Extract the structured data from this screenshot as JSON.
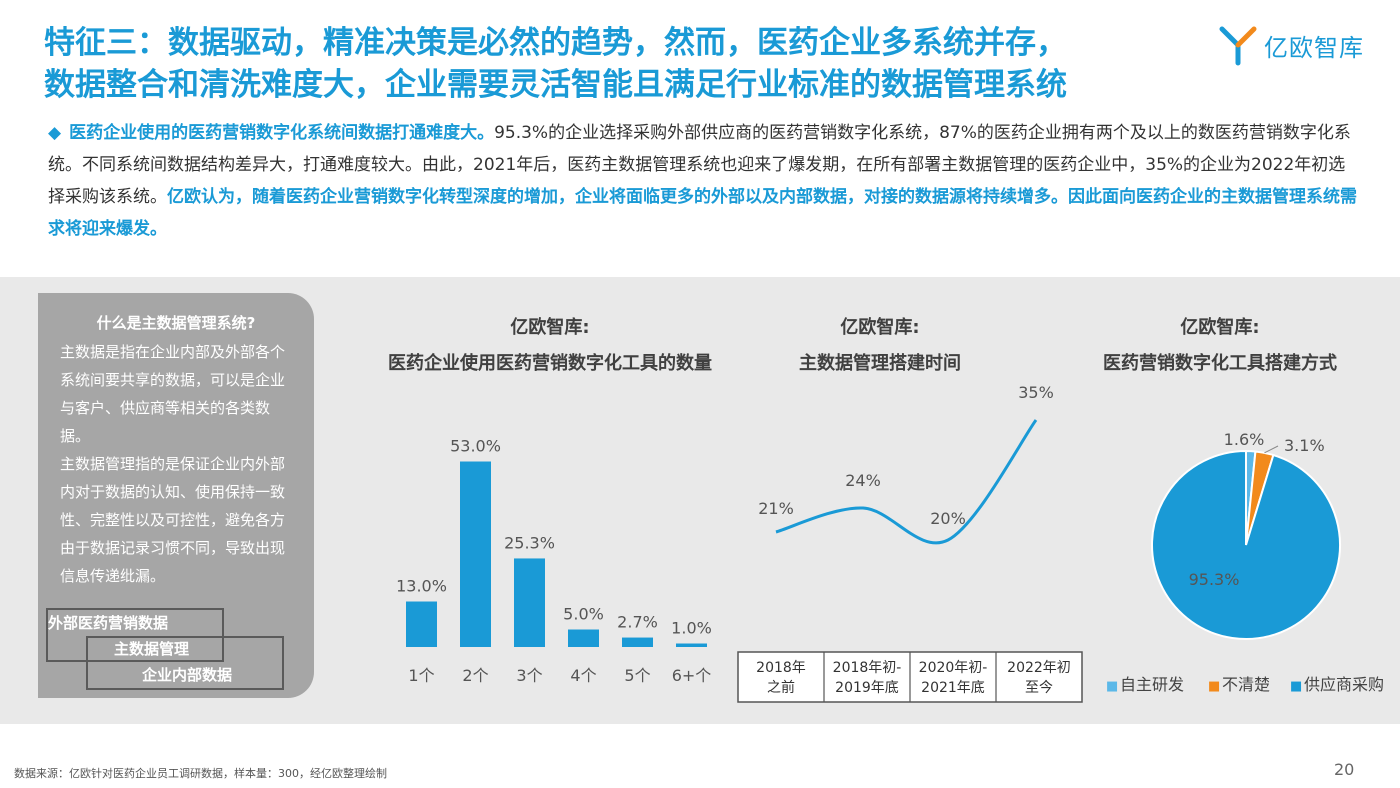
{
  "header": {
    "title_line1": "特征三：数据驱动，精准决策是必然的趋势，然而，医药企业多系统并存，",
    "title_line2": "数据整合和清洗难度大，企业需要灵活智能且满足行业标准的数据管理系统",
    "logo_text": "亿欧智库"
  },
  "intro": {
    "bullet": "◆",
    "lead": "医药企业使用的医药营销数字化系统间数据打通难度大。",
    "body": "95.3%的企业选择采购外部供应商的医药营销数字化系统，87%的医药企业拥有两个及以上的数医药营销数字化系统。不同系统间数据结构差异大，打通难度较大。由此，2021年后，医药主数据管理系统也迎来了爆发期，在所有部署主数据管理的医药企业中，35%的企业为2022年初选择采购该系统。",
    "highlight": "亿欧认为，随着医药企业营销数字化转型深度的增加，企业将面临更多的外部以及内部数据，对接的数据源将持续增多。因此面向医药企业的主数据管理系统需求将迎来爆发。"
  },
  "definition": {
    "title": "什么是主数据管理系统?",
    "p1": "主数据是指在企业内部及外部各个系统间要共享的数据，可以是企业与客户、供应商等相关的各类数据。",
    "p2": "主数据管理指的是保证企业内外部内对于数据的认知、使用保持一致性、完整性以及可控性，避免各方由于数据记录习惯不同，导致出现信息传递纰漏。",
    "venn": [
      "外部医药营销数据",
      "主数据管理",
      "企业内部数据"
    ]
  },
  "chart_data": [
    {
      "type": "bar",
      "title_line1": "亿欧智库:",
      "title_line2": "医药企业使用医药营销数字化工具的数量",
      "categories": [
        "1个",
        "2个",
        "3个",
        "4个",
        "5个",
        "6+个"
      ],
      "values": [
        13.0,
        53.0,
        25.3,
        5.0,
        2.7,
        1.0
      ],
      "value_labels": [
        "13.0%",
        "53.0%",
        "25.3%",
        "5.0%",
        "2.7%",
        "1.0%"
      ],
      "ylim": [
        0,
        60
      ],
      "color": "#1a9ad6"
    },
    {
      "type": "line",
      "title_line1": "亿欧智库:",
      "title_line2": "主数据管理搭建时间",
      "categories": [
        [
          "2018年",
          "之前"
        ],
        [
          "2018年初-",
          "2019年底"
        ],
        [
          "2020年初-",
          "2021年底"
        ],
        [
          "2022年初",
          "至今"
        ]
      ],
      "values": [
        21,
        24,
        20,
        35
      ],
      "value_labels": [
        "21%",
        "24%",
        "20%",
        "35%"
      ],
      "ylim": [
        10,
        40
      ],
      "color": "#1a9ad6"
    },
    {
      "type": "pie",
      "title_line1": "亿欧智库:",
      "title_line2": "医药营销数字化工具搭建方式",
      "slices": [
        {
          "name": "自主研发",
          "value": 1.6,
          "label": "1.6%",
          "color": "#5bb8e8"
        },
        {
          "name": "不清楚",
          "value": 3.1,
          "label": "3.1%",
          "color": "#f28a1c"
        },
        {
          "name": "供应商采购",
          "value": 95.3,
          "label": "95.3%",
          "color": "#1a9ad6"
        }
      ],
      "legend_bullet": "■"
    }
  ],
  "footer": {
    "source": "数据来源：亿欧针对医药企业员工调研数据，样本量：300，经亿欧整理绘制",
    "page": "20"
  }
}
